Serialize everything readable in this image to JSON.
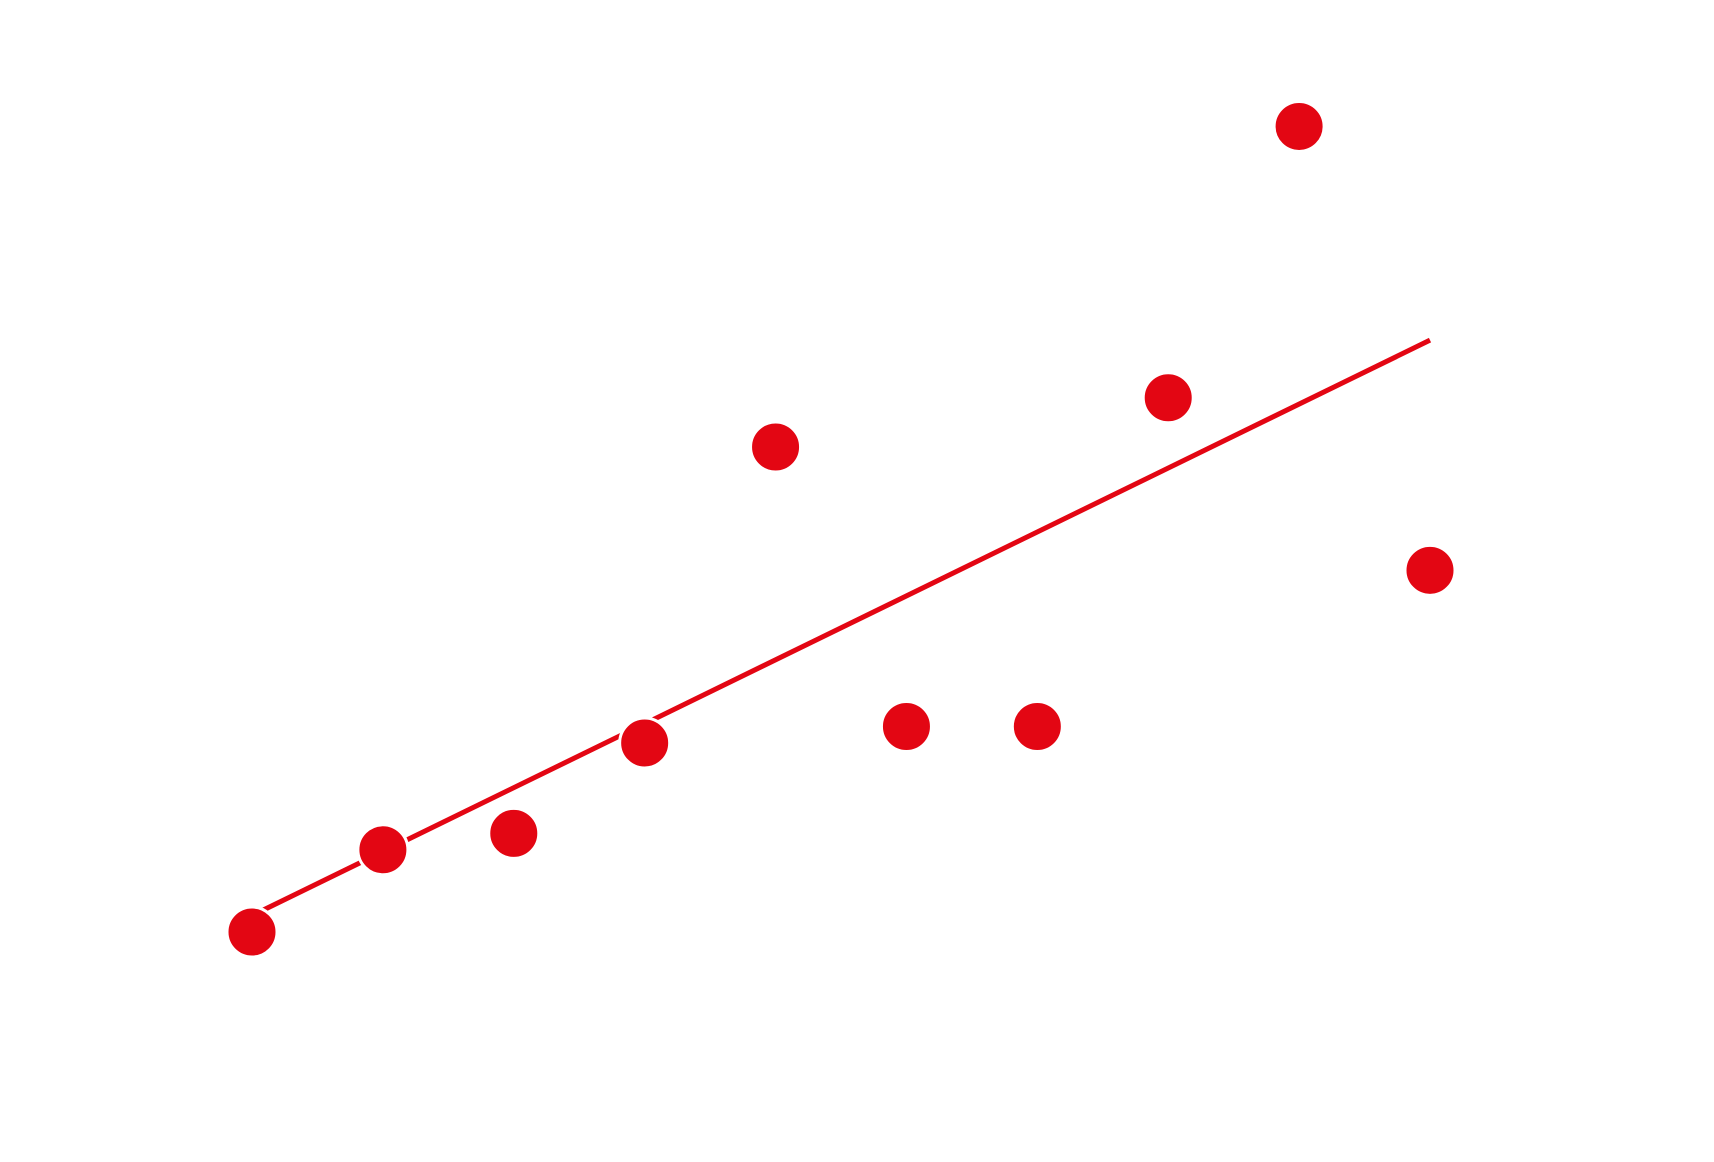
{
  "chart_data": {
    "type": "scatter",
    "title": "",
    "xlabel": "",
    "ylabel": "",
    "grid": false,
    "legend": "none",
    "axes_visible": false,
    "xlim": [
      0,
      9
    ],
    "ylim": [
      0,
      5
    ],
    "colors": {
      "points": "#e30613",
      "trend_line": "#e30613",
      "background": "#ffffff"
    },
    "series": [
      {
        "x": [
          0,
          1,
          2,
          3,
          4,
          5,
          6,
          7,
          8,
          9
        ],
        "y": [
          0,
          0.5,
          0.6,
          1.15,
          2.95,
          1.25,
          1.25,
          3.25,
          4.9,
          2.2
        ]
      }
    ],
    "trend_line": {
      "x": [
        0,
        9
      ],
      "y": [
        0.1,
        3.6
      ]
    }
  }
}
